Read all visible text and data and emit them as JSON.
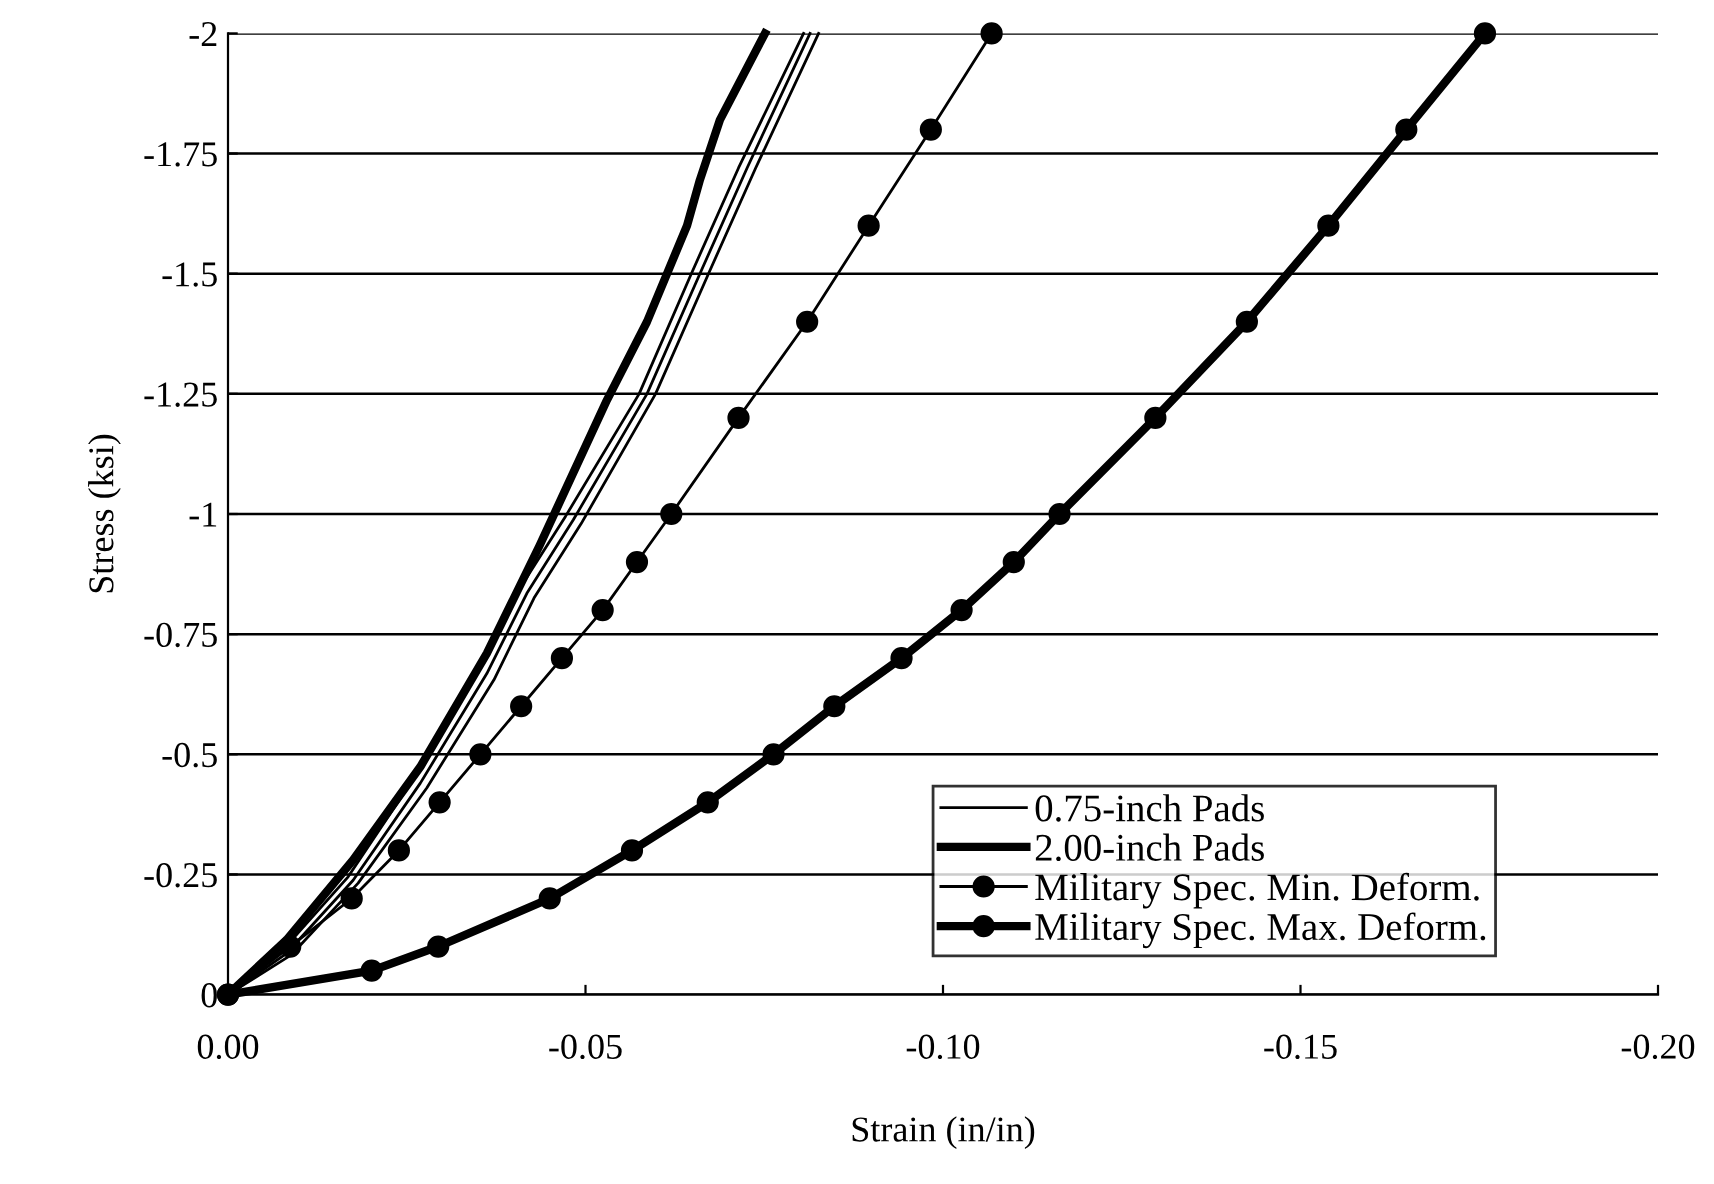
{
  "chart_data": {
    "type": "line",
    "xlabel": "Strain (in/in)",
    "ylabel": "Stress (ksi)",
    "xlim": [
      0,
      -0.2
    ],
    "ylim": [
      0,
      -2
    ],
    "xticks": [
      {
        "value": 0,
        "label": "0.00"
      },
      {
        "value": -0.05,
        "label": "-0.05"
      },
      {
        "value": -0.1,
        "label": "-0.10"
      },
      {
        "value": -0.15,
        "label": "-0.15"
      },
      {
        "value": -0.2,
        "label": "-0.20"
      }
    ],
    "yticks": [
      0,
      -0.25,
      -0.5,
      -0.75,
      -1,
      -1.25,
      -1.5,
      -1.75,
      -2
    ],
    "grid": "y",
    "legend": "bottom right",
    "series": [
      {
        "name": "0.75-inch Pads",
        "color": "#000000",
        "marker": "none",
        "x": [
          0,
          -0.0082,
          -0.0175,
          -0.0269,
          -0.0362,
          -0.0418,
          -0.0483,
          -0.0586,
          -0.066,
          -0.0726,
          -0.0814
        ],
        "values": [
          0,
          -0.086,
          -0.238,
          -0.44,
          -0.668,
          -0.835,
          -0.988,
          -1.25,
          -1.5,
          -1.72,
          -2.0
        ]
      },
      {
        "color": "#000000",
        "marker": "none",
        "x": [
          0,
          -0.0075,
          -0.0168,
          -0.026,
          -0.0352,
          -0.0408,
          -0.0472,
          -0.0575,
          -0.0648,
          -0.0714,
          -0.0805
        ],
        "values": [
          0,
          -0.09,
          -0.245,
          -0.45,
          -0.68,
          -0.845,
          -0.995,
          -1.25,
          -1.5,
          -1.72,
          -2.0
        ]
      },
      {
        "color": "#000000",
        "marker": "none",
        "x": [
          0,
          -0.0088,
          -0.0182,
          -0.0278,
          -0.0372,
          -0.0428,
          -0.0494,
          -0.0598,
          -0.0672,
          -0.0738,
          -0.0826
        ],
        "values": [
          0,
          -0.082,
          -0.232,
          -0.43,
          -0.655,
          -0.825,
          -0.98,
          -1.25,
          -1.5,
          -1.72,
          -2.0
        ]
      },
      {
        "name": "2.00-inch Pads",
        "color": "#000000",
        "marker": "none",
        "x": [
          0,
          -0.0082,
          -0.0175,
          -0.0269,
          -0.0362,
          -0.0436,
          -0.053,
          -0.0586,
          -0.0642,
          -0.066,
          -0.0688,
          -0.0751
        ],
        "values": [
          0,
          -0.114,
          -0.28,
          -0.474,
          -0.71,
          -0.935,
          -1.237,
          -1.4,
          -1.6,
          -1.695,
          -1.82,
          -2.0
        ]
      },
      {
        "name": "Military Spec. Min. Deform.",
        "color": "#000000",
        "marker": "circle",
        "x": [
          0,
          -0.0087,
          -0.0173,
          -0.0239,
          -0.0296,
          -0.0353,
          -0.041,
          -0.0467,
          -0.0524,
          -0.0572,
          -0.062,
          -0.0714,
          -0.081,
          -0.0896,
          -0.0983,
          -0.1068
        ],
        "values": [
          0,
          -0.1,
          -0.2,
          -0.3,
          -0.4,
          -0.5,
          -0.6,
          -0.7,
          -0.8,
          -0.9,
          -1.0,
          -1.2,
          -1.4,
          -1.6,
          -1.8,
          -2.0
        ]
      },
      {
        "name": "Military Spec. Max. Deform.",
        "color": "#000000",
        "marker": "circle",
        "x": [
          0,
          -0.0201,
          -0.0294,
          -0.045,
          -0.0565,
          -0.0671,
          -0.0763,
          -0.0848,
          -0.0942,
          -0.1026,
          -0.1099,
          -0.1163,
          -0.1297,
          -0.1425,
          -0.1539,
          -0.1648,
          -0.1758
        ],
        "values": [
          0,
          -0.05,
          -0.1,
          -0.2,
          -0.3,
          -0.4,
          -0.5,
          -0.6,
          -0.7,
          -0.8,
          -0.9,
          -1.0,
          -1.2,
          -1.4,
          -1.6,
          -1.8,
          -2.0
        ]
      }
    ]
  }
}
